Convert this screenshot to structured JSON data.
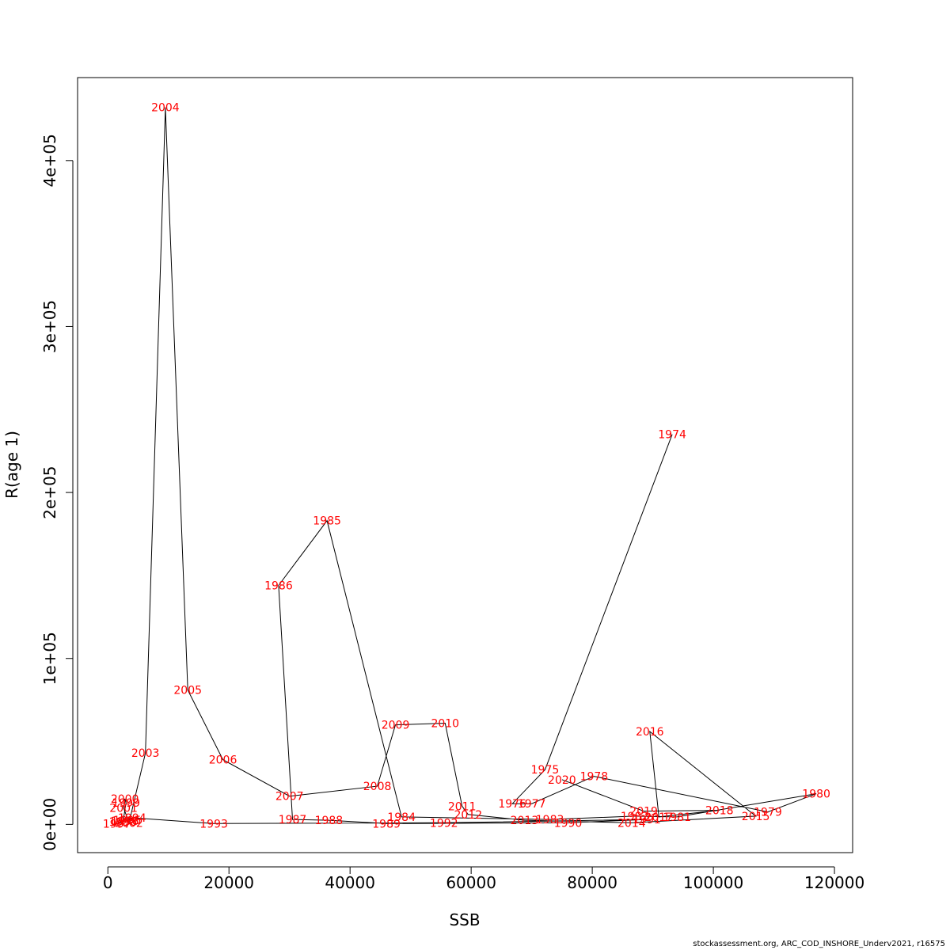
{
  "chart_data": {
    "type": "scatter",
    "connected": true,
    "title": "",
    "xlabel": "SSB",
    "ylabel": "R(age 1)",
    "xlim": [
      -5000,
      123000
    ],
    "ylim": [
      -17000,
      450000
    ],
    "xticks": [
      0,
      20000,
      40000,
      60000,
      80000,
      100000,
      120000
    ],
    "xtick_labels": [
      "0",
      "20000",
      "40000",
      "60000",
      "80000",
      "100000",
      "120000"
    ],
    "yticks": [
      0,
      100000,
      200000,
      300000,
      400000
    ],
    "ytick_labels": [
      "0e+00",
      "1e+05",
      "2e+05",
      "3e+05",
      "4e+05"
    ],
    "grid": false,
    "line_color": "#000000",
    "label_color": "#ff0000",
    "points": [
      {
        "year": "1974",
        "x": 93200,
        "y": 235000
      },
      {
        "year": "1975",
        "x": 72200,
        "y": 33000
      },
      {
        "year": "1976",
        "x": 66800,
        "y": 12500
      },
      {
        "year": "1977",
        "x": 70000,
        "y": 12500
      },
      {
        "year": "1978",
        "x": 80300,
        "y": 29000
      },
      {
        "year": "1979",
        "x": 109000,
        "y": 7500
      },
      {
        "year": "1980",
        "x": 117000,
        "y": 18500
      },
      {
        "year": "1981",
        "x": 94000,
        "y": 4500
      },
      {
        "year": "1982",
        "x": 87000,
        "y": 5000
      },
      {
        "year": "1983",
        "x": 73000,
        "y": 3000
      },
      {
        "year": "1984",
        "x": 48500,
        "y": 4500
      },
      {
        "year": "1985",
        "x": 36200,
        "y": 183000
      },
      {
        "year": "1986",
        "x": 28200,
        "y": 144000
      },
      {
        "year": "1987",
        "x": 30500,
        "y": 3000
      },
      {
        "year": "1988",
        "x": 36500,
        "y": 2500
      },
      {
        "year": "1989",
        "x": 46000,
        "y": 500
      },
      {
        "year": "1990",
        "x": 76000,
        "y": 1000
      },
      {
        "year": "1991",
        "x": 89000,
        "y": 3000
      },
      {
        "year": "1992",
        "x": 55500,
        "y": 1000
      },
      {
        "year": "1993",
        "x": 17500,
        "y": 500
      },
      {
        "year": "1994",
        "x": 4000,
        "y": 4000
      },
      {
        "year": "1995",
        "x": 3200,
        "y": 2500
      },
      {
        "year": "1996",
        "x": 2800,
        "y": 2000
      },
      {
        "year": "1997",
        "x": 1500,
        "y": 500
      },
      {
        "year": "1998",
        "x": 2500,
        "y": 1500
      },
      {
        "year": "1999",
        "x": 3000,
        "y": 13000
      },
      {
        "year": "2000",
        "x": 2800,
        "y": 15500
      },
      {
        "year": "2001",
        "x": 2600,
        "y": 10000
      },
      {
        "year": "2002",
        "x": 3500,
        "y": 1000
      },
      {
        "year": "2003",
        "x": 6200,
        "y": 43000
      },
      {
        "year": "2004",
        "x": 9500,
        "y": 432000
      },
      {
        "year": "2005",
        "x": 13200,
        "y": 81000
      },
      {
        "year": "2006",
        "x": 19000,
        "y": 39000
      },
      {
        "year": "2007",
        "x": 30000,
        "y": 17000
      },
      {
        "year": "2008",
        "x": 44500,
        "y": 23000
      },
      {
        "year": "2009",
        "x": 47500,
        "y": 60000
      },
      {
        "year": "2010",
        "x": 55700,
        "y": 61000
      },
      {
        "year": "2011",
        "x": 58500,
        "y": 11000
      },
      {
        "year": "2012",
        "x": 59500,
        "y": 6000
      },
      {
        "year": "2013",
        "x": 68800,
        "y": 2500
      },
      {
        "year": "2014",
        "x": 86500,
        "y": 1000
      },
      {
        "year": "2015",
        "x": 107000,
        "y": 5000
      },
      {
        "year": "2016",
        "x": 89500,
        "y": 56000
      },
      {
        "year": "2017",
        "x": 91000,
        "y": 4500
      },
      {
        "year": "2018",
        "x": 101000,
        "y": 8500
      },
      {
        "year": "2019",
        "x": 88500,
        "y": 8000
      },
      {
        "year": "2020",
        "x": 75000,
        "y": 27000
      }
    ]
  },
  "caption": "stockassessment.org, ARC_COD_INSHORE_Underv2021, r16575"
}
